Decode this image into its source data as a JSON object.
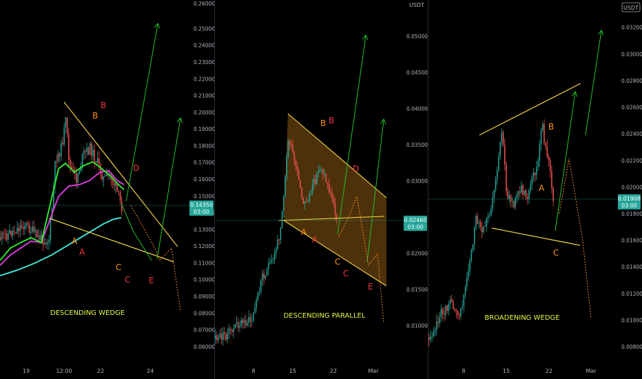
{
  "colors": {
    "background": "#000000",
    "panel_separator": "#2a2e39",
    "axis_text": "#b2b5be",
    "up_candle": "#26a69a",
    "down_candle": "#ef5350",
    "trendline": "#f5d547",
    "projection_up": "#22c32a",
    "projection_down": "#f28c28",
    "label_orange": "#f7931a",
    "label_red": "#f23645",
    "label_yellow_green": "#e8f542",
    "price_marker": "#26a69a",
    "ma_green": "#2ee62e",
    "ma_magenta": "#d63cd6",
    "ma_cyan": "#3fe0d0",
    "channel_fill": "#8a5a12"
  },
  "chart_data": [
    {
      "type": "candlestick",
      "title": "DESCENDING WEDGE",
      "x_ticks": [
        "19",
        "12:00",
        "22",
        "24"
      ],
      "y_ticks": [
        "0.25000",
        "0.24000",
        "0.23000",
        "0.22000",
        "0.21000",
        "0.20000",
        "0.19000",
        "0.18000",
        "0.17000",
        "0.16000",
        "0.15000",
        "0.14000",
        "0.13000",
        "0.12000",
        "0.11000",
        "0.10000",
        "0.09000",
        "0.08000",
        "0.07000",
        "0.06000"
      ],
      "y_ticks_top_partial": "0.26000",
      "ylim": [
        0.055,
        0.265
      ],
      "last_price": "0.14350",
      "countdown": "03:00",
      "wave_labels": [
        "A",
        "A",
        "B",
        "B",
        "C",
        "C",
        "D",
        "E"
      ],
      "indicators": [
        "moving-average-green",
        "moving-average-magenta",
        "moving-average-cyan"
      ]
    },
    {
      "type": "candlestick",
      "title": "DESCENDING PARALLEL",
      "currency": "USDT",
      "x_ticks": [
        "8",
        "15",
        "22",
        "Mar"
      ],
      "y_ticks": [
        "0.05000",
        "0.04500",
        "0.04000",
        "0.03500",
        "0.03000",
        "0.02000",
        "0.01500",
        "0.01000"
      ],
      "ylim": [
        0.0055,
        0.0545
      ],
      "last_price": "0.02460",
      "countdown": "03:00",
      "wave_labels": [
        "A",
        "A",
        "B",
        "B",
        "C",
        "C",
        "D",
        "E"
      ]
    },
    {
      "type": "candlestick",
      "title": "BROADENING WEDGE",
      "currency": "USDT",
      "x_ticks": [
        "8",
        "15",
        "22",
        "Mar"
      ],
      "y_ticks": [
        "0.03200",
        "0.03000",
        "0.02800",
        "0.02600",
        "0.02400",
        "0.02200",
        "0.02000",
        "0.01800",
        "0.01600",
        "0.01400",
        "0.01200",
        "0.01000",
        "0.00800"
      ],
      "ylim": [
        0.0066,
        0.0338
      ],
      "last_price": "0.01908",
      "countdown": "03:00",
      "wave_labels": [
        "A",
        "B",
        "C"
      ]
    }
  ]
}
